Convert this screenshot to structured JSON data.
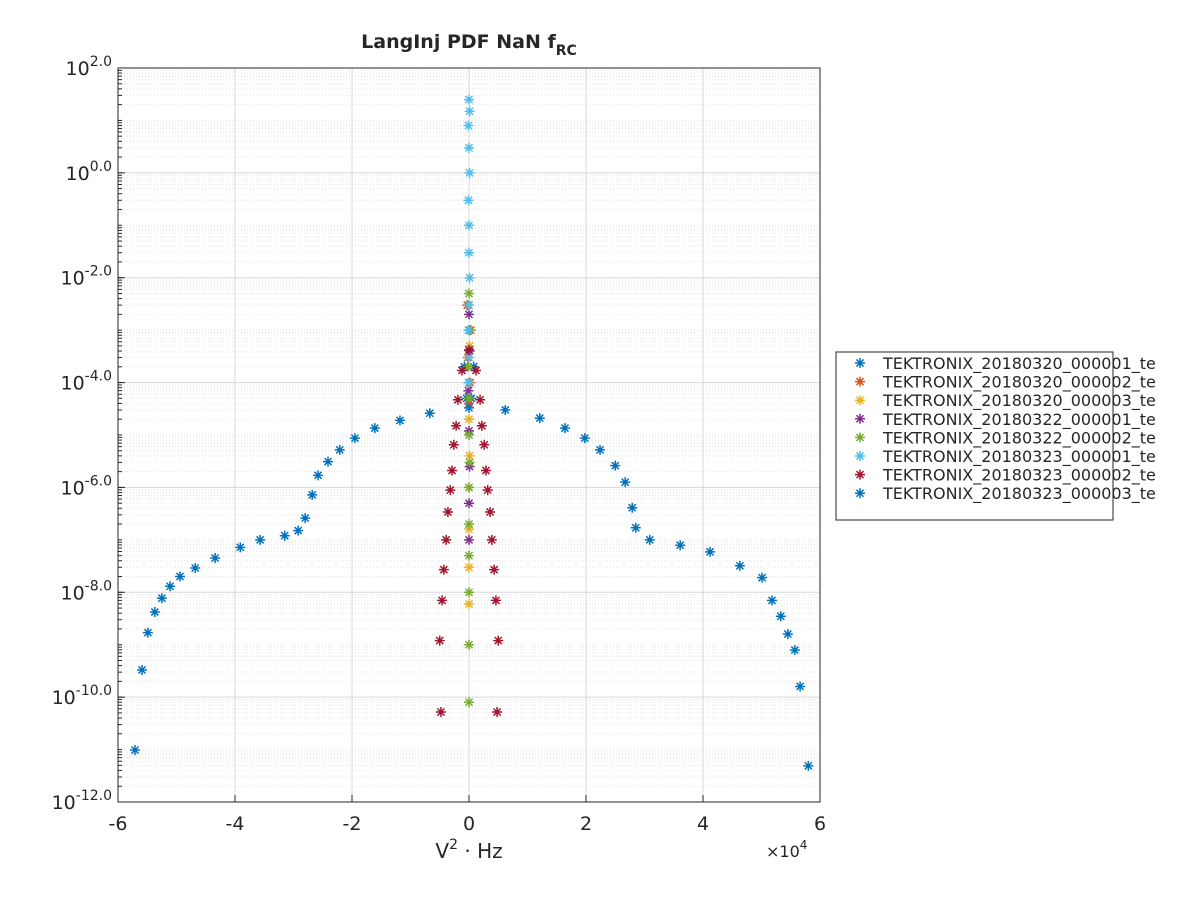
{
  "chart_data": {
    "type": "scatter",
    "title": "LangInj PDF NaN f",
    "title_subscript": "RC",
    "xlabel": "V",
    "xlabel_superscript": "2",
    "xlabel_rest": " · Hz",
    "x_multiplier": "×10",
    "x_multiplier_exponent": "4",
    "xlim": [
      -60000,
      60000
    ],
    "xticks": [
      {
        "value": -60000,
        "label": "-6"
      },
      {
        "value": -40000,
        "label": "-4"
      },
      {
        "value": -20000,
        "label": "-2"
      },
      {
        "value": 0,
        "label": "0"
      },
      {
        "value": 20000,
        "label": "2"
      },
      {
        "value": 40000,
        "label": "4"
      },
      {
        "value": 60000,
        "label": "6"
      }
    ],
    "ylim": [
      1e-12,
      100
    ],
    "y_log": true,
    "yticks": [
      {
        "value": 100,
        "label": "10^2.0"
      },
      {
        "value": 1,
        "label": "10^0.0"
      },
      {
        "value": 0.01,
        "label": "10^-2.0"
      },
      {
        "value": 0.0001,
        "label": "10^-4.0"
      },
      {
        "value": 1e-06,
        "label": "10^-6.0"
      },
      {
        "value": 1e-08,
        "label": "10^-8.0"
      },
      {
        "value": 1e-10,
        "label": "10^-10.0"
      },
      {
        "value": 1e-12,
        "label": "10^-12.0"
      }
    ],
    "grid": true,
    "legend": "right",
    "series": [
      {
        "name": "TEKTRONIX_20180320_000001_te",
        "color": "#0072BD",
        "x": [
          -800,
          0,
          800,
          -400,
          400
        ],
        "values": [
          0.0002,
          0.0001,
          0.0002,
          5e-05,
          5e-05
        ]
      },
      {
        "name": "TEKTRONIX_20180320_000002_te",
        "color": "#D95319",
        "x": [
          -300,
          300,
          -200,
          200,
          0
        ],
        "values": [
          0.003,
          0.001,
          0.0003,
          0.0001,
          4e-05
        ]
      },
      {
        "name": "TEKTRONIX_20180320_000003_te",
        "color": "#EDB120",
        "x": [
          0,
          100,
          -100,
          0,
          100,
          0,
          0,
          0,
          0
        ],
        "values": [
          0.003,
          0.0005,
          0.0001,
          2e-05,
          4e-06,
          1e-06,
          1.6e-07,
          3e-08,
          6e-09
        ]
      },
      {
        "name": "TEKTRONIX_20180322_000001_te",
        "color": "#7E2F8E",
        "x": [
          0,
          100,
          -100,
          0,
          100,
          0,
          0
        ],
        "values": [
          0.002,
          0.0004,
          7e-05,
          1.2e-05,
          2.5e-06,
          5e-07,
          1e-07
        ]
      },
      {
        "name": "TEKTRONIX_20180322_000002_te",
        "color": "#77AC30",
        "x": [
          0,
          100,
          -100,
          0,
          0,
          100,
          0,
          0,
          0,
          0,
          0,
          0
        ],
        "values": [
          0.005,
          0.001,
          0.0002,
          5e-05,
          1e-05,
          3e-06,
          1e-06,
          2e-07,
          5e-08,
          1e-08,
          1e-09,
          8e-11
        ]
      },
      {
        "name": "TEKTRONIX_20180323_000001_te",
        "color": "#4DBEEE",
        "x": [
          0,
          100,
          -100,
          0,
          100,
          -100,
          0,
          0,
          100,
          0,
          -100,
          0,
          0
        ],
        "values": [
          25,
          15,
          8,
          3,
          1,
          0.3,
          0.1,
          0.03,
          0.01,
          0.003,
          0.001,
          0.0003,
          0.0001
        ]
      },
      {
        "name": "TEKTRONIX_20180323_000002_te",
        "color": "#A2142F",
        "x": [
          -4800,
          -5000,
          -4600,
          -4300,
          -3900,
          -3600,
          -3200,
          -2900,
          -2600,
          -2200,
          -1900,
          -1200,
          0,
          1200,
          1900,
          2200,
          2600,
          2900,
          3200,
          3600,
          3900,
          4300,
          4600,
          5000,
          4800
        ],
        "values": [
          5.2e-11,
          1.2e-09,
          7e-09,
          2.7e-08,
          1e-07,
          3.4e-07,
          8.9e-07,
          2.1e-06,
          6.5e-06,
          1.5e-05,
          4.7e-05,
          0.00017,
          0.00042,
          0.00017,
          4.7e-05,
          1.5e-05,
          6.5e-06,
          2.1e-06,
          8.9e-07,
          3.4e-07,
          1e-07,
          2.7e-08,
          7e-09,
          1.2e-09,
          5.2e-11
        ]
      },
      {
        "name": "TEKTRONIX_20180323_000003_te",
        "color": "#0072BD",
        "x": [
          -57100,
          -55900,
          -54900,
          -53700,
          -52500,
          -51100,
          -49400,
          -46800,
          -43400,
          -39100,
          -35700,
          -31500,
          -29200,
          -28000,
          -26800,
          -25800,
          -24100,
          -22100,
          -19500,
          -16100,
          -11800,
          -6700,
          0,
          6200,
          12100,
          16400,
          19800,
          22400,
          25000,
          26700,
          27900,
          28500,
          30900,
          36100,
          41200,
          46300,
          50100,
          51800,
          53300,
          54500,
          55700,
          56600,
          58000
        ],
        "values": [
          9.8e-12,
          3.3e-10,
          1.7e-09,
          4.2e-09,
          7.7e-09,
          1.3e-08,
          2e-08,
          2.9e-08,
          4.5e-08,
          7.2e-08,
          1e-07,
          1.2e-07,
          1.5e-07,
          2.6e-07,
          7.2e-07,
          1.7e-06,
          3.1e-06,
          5.2e-06,
          8.7e-06,
          1.35e-05,
          1.9e-05,
          2.6e-05,
          3.3e-05,
          3e-05,
          2.1e-05,
          1.35e-05,
          8.7e-06,
          5.2e-06,
          2.6e-06,
          1.26e-06,
          4.1e-07,
          1.7e-07,
          1e-07,
          7.9e-08,
          5.9e-08,
          3.2e-08,
          1.9e-08,
          7e-09,
          3.5e-09,
          1.6e-09,
          7.9e-10,
          1.6e-10,
          4.9e-12
        ]
      }
    ]
  }
}
